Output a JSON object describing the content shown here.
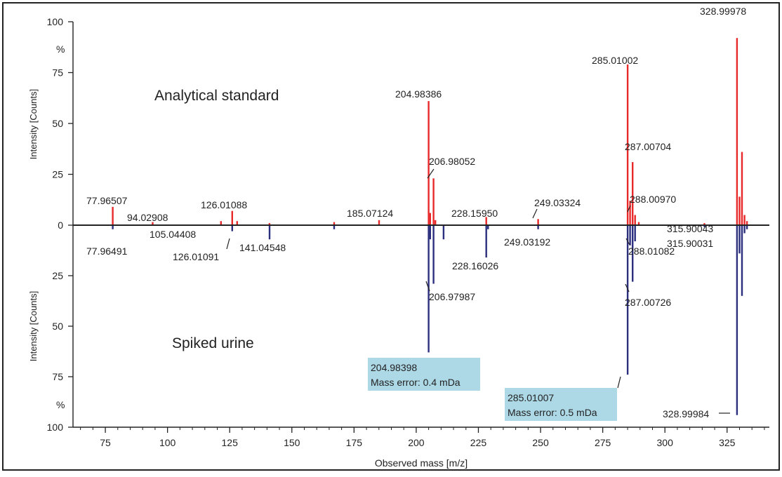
{
  "chart_data": {
    "type": "bar",
    "xlabel": "Observed mass [m/z]",
    "xlim": [
      62,
      342
    ],
    "x_ticks": [
      "75",
      "100",
      "125",
      "150",
      "175",
      "200",
      "225",
      "250",
      "275",
      "300",
      "325"
    ],
    "top_panel": {
      "title": "Analytical standard",
      "ylabel": "Intensity [Counts]",
      "unit": "%",
      "ylim": [
        0,
        100
      ],
      "y_ticks": [
        "0",
        "25",
        "50",
        "75",
        "100"
      ],
      "color": "#e8292a",
      "labels": [
        {
          "mz": 77.96507,
          "text": "77.96507"
        },
        {
          "mz": 94.02908,
          "text": "94.02908"
        },
        {
          "mz": 126.01088,
          "text": "126.01088"
        },
        {
          "mz": 185.07124,
          "text": "185.07124"
        },
        {
          "mz": 204.98386,
          "text": "204.98386"
        },
        {
          "mz": 206.98052,
          "text": "206.98052"
        },
        {
          "mz": 228.1595,
          "text": "228.15950"
        },
        {
          "mz": 249.03324,
          "text": "249.03324"
        },
        {
          "mz": 285.01002,
          "text": "285.01002"
        },
        {
          "mz": 287.00704,
          "text": "287.00704"
        },
        {
          "mz": 288.0097,
          "text": "288.00970"
        },
        {
          "mz": 315.90043,
          "text": "315.90043"
        },
        {
          "mz": 328.99978,
          "text": "328.99978"
        }
      ],
      "peaks": [
        {
          "mz": 77.965,
          "i": 9
        },
        {
          "mz": 94.029,
          "i": 1.5
        },
        {
          "mz": 121.5,
          "i": 2
        },
        {
          "mz": 126.011,
          "i": 7
        },
        {
          "mz": 128,
          "i": 2
        },
        {
          "mz": 141.0,
          "i": 1
        },
        {
          "mz": 167,
          "i": 1.5
        },
        {
          "mz": 185.071,
          "i": 2.5
        },
        {
          "mz": 204.984,
          "i": 61
        },
        {
          "mz": 205.6,
          "i": 6
        },
        {
          "mz": 206.981,
          "i": 23
        },
        {
          "mz": 207.7,
          "i": 2.5
        },
        {
          "mz": 228.16,
          "i": 4
        },
        {
          "mz": 249.033,
          "i": 3
        },
        {
          "mz": 285.01,
          "i": 79
        },
        {
          "mz": 286.0,
          "i": 12
        },
        {
          "mz": 287.007,
          "i": 31
        },
        {
          "mz": 288.01,
          "i": 5
        },
        {
          "mz": 289.5,
          "i": 1.5
        },
        {
          "mz": 315.9,
          "i": 1
        },
        {
          "mz": 329.0,
          "i": 92
        },
        {
          "mz": 330.0,
          "i": 14
        },
        {
          "mz": 331.0,
          "i": 36
        },
        {
          "mz": 332.0,
          "i": 5
        },
        {
          "mz": 333.0,
          "i": 2
        }
      ]
    },
    "bottom_panel": {
      "title": "Spiked urine",
      "ylabel": "Intensity [Counts]",
      "unit": "%",
      "ylim": [
        0,
        100
      ],
      "y_ticks": [
        "25",
        "50",
        "75",
        "100"
      ],
      "color": "#2b2f7e",
      "labels": [
        {
          "mz": 77.96491,
          "text": "77.96491"
        },
        {
          "mz": 105.04408,
          "text": "105.04408"
        },
        {
          "mz": 126.01091,
          "text": "126.01091"
        },
        {
          "mz": 141.04548,
          "text": "141.04548"
        },
        {
          "mz": 206.97987,
          "text": "206.97987"
        },
        {
          "mz": 228.16026,
          "text": "228.16026"
        },
        {
          "mz": 249.03192,
          "text": "249.03192"
        },
        {
          "mz": 288.01082,
          "text": "288.01082"
        },
        {
          "mz": 287.00726,
          "text": "287.00726"
        },
        {
          "mz": 315.90031,
          "text": "315.90031"
        },
        {
          "mz": 328.99984,
          "text": "328.99984"
        }
      ],
      "peaks": [
        {
          "mz": 77.965,
          "i": 2
        },
        {
          "mz": 126.011,
          "i": 3
        },
        {
          "mz": 141.045,
          "i": 7
        },
        {
          "mz": 167,
          "i": 2
        },
        {
          "mz": 204.984,
          "i": 63
        },
        {
          "mz": 205.6,
          "i": 7
        },
        {
          "mz": 206.98,
          "i": 29
        },
        {
          "mz": 211,
          "i": 7
        },
        {
          "mz": 228.16,
          "i": 16
        },
        {
          "mz": 228.9,
          "i": 2
        },
        {
          "mz": 249.032,
          "i": 2
        },
        {
          "mz": 285.01,
          "i": 74
        },
        {
          "mz": 286.0,
          "i": 10
        },
        {
          "mz": 287.007,
          "i": 28
        },
        {
          "mz": 288.011,
          "i": 8
        },
        {
          "mz": 315.9,
          "i": 1
        },
        {
          "mz": 329.0,
          "i": 94
        },
        {
          "mz": 330.0,
          "i": 14
        },
        {
          "mz": 331.0,
          "i": 35
        },
        {
          "mz": 332.0,
          "i": 4
        },
        {
          "mz": 333.0,
          "i": 2
        }
      ]
    },
    "annotations": [
      {
        "mz": 204.98398,
        "label1": "204.98398",
        "label2": "Mass error: 0.4 mDa"
      },
      {
        "mz": 285.01007,
        "label1": "285.01007",
        "label2": "Mass error: 0.5 mDa"
      }
    ]
  }
}
